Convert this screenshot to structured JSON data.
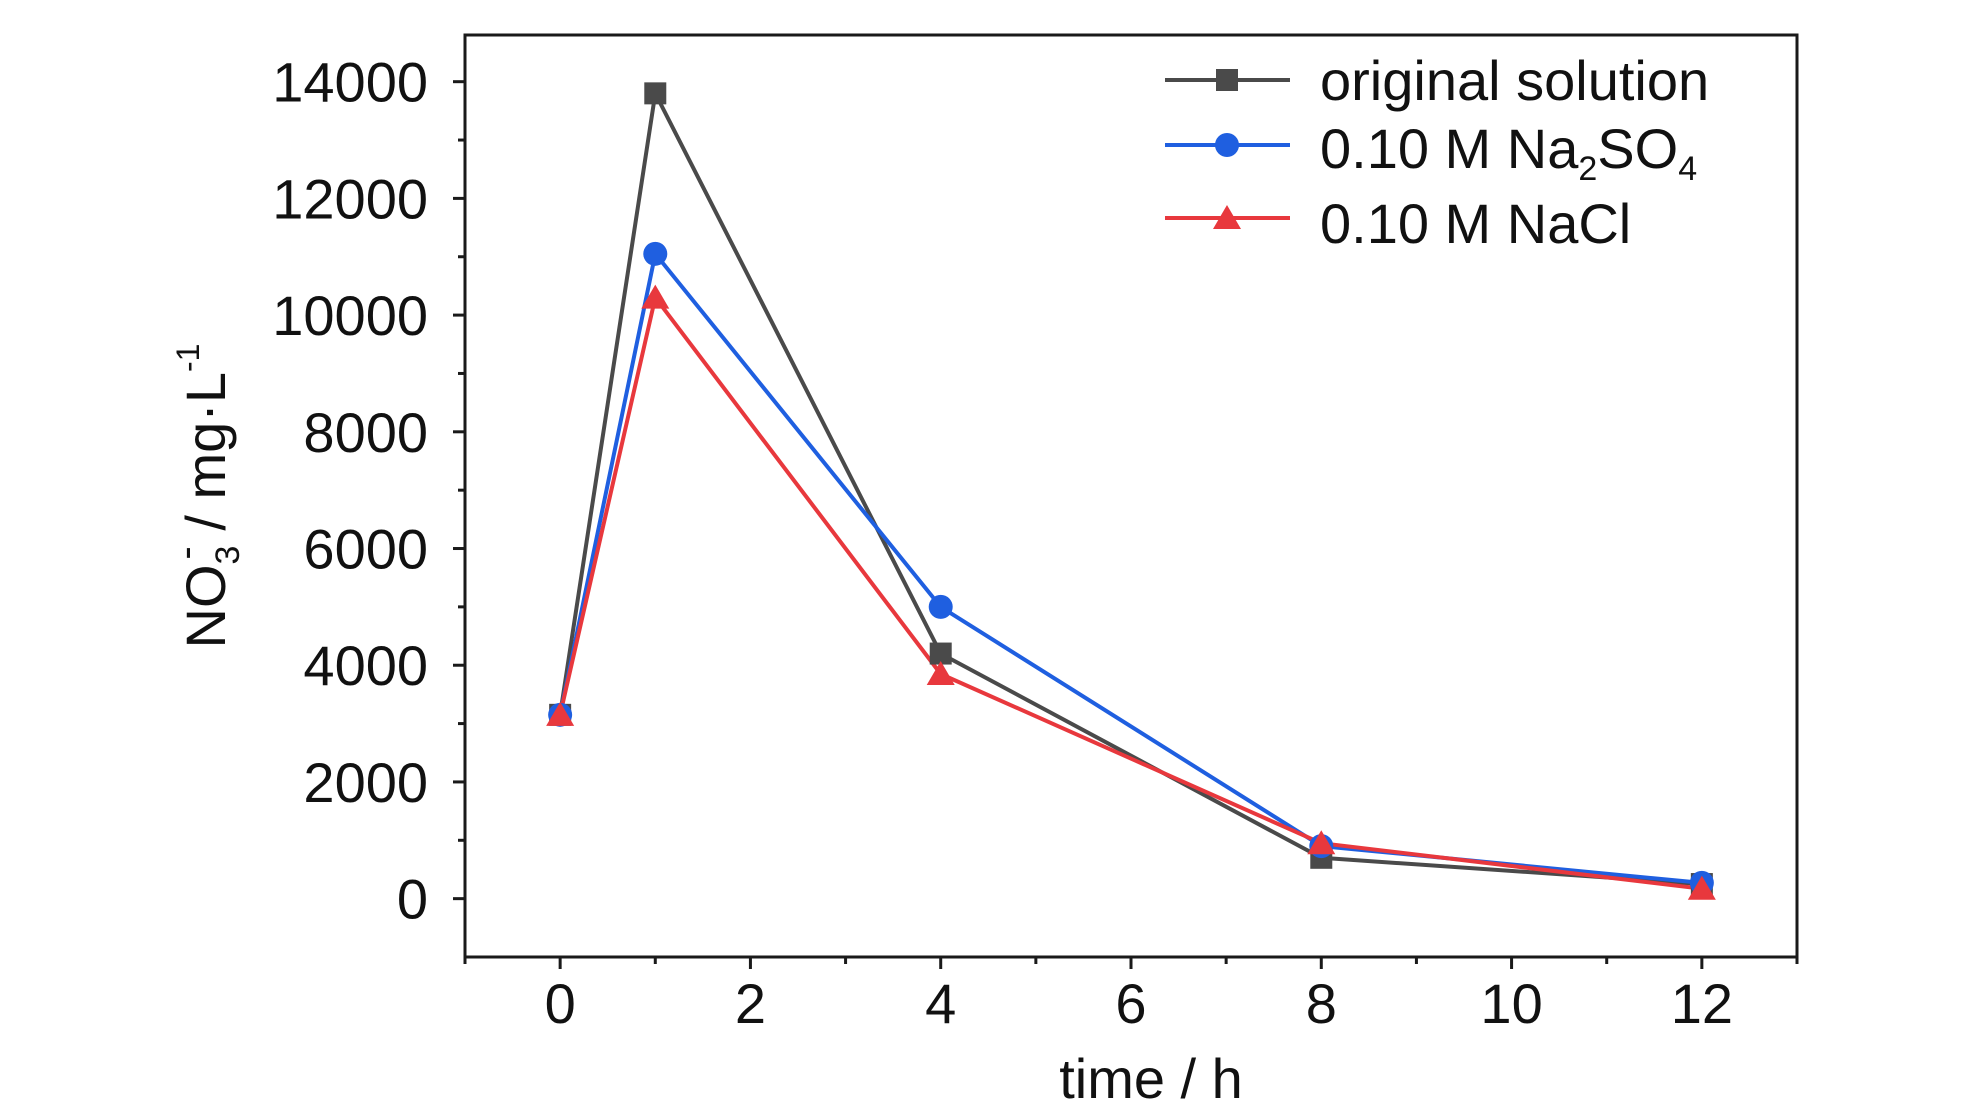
{
  "chart_data": {
    "type": "line",
    "xlabel": "time / h",
    "ylabel": {
      "base": "NO",
      "sub": "3",
      "charge": "-",
      "rest": " / mg·L",
      "exp": "-1"
    },
    "xlim": [
      -1,
      13
    ],
    "ylim": [
      -1000,
      14800
    ],
    "xticks": [
      0,
      2,
      4,
      6,
      8,
      10,
      12
    ],
    "yticks": [
      0,
      2000,
      4000,
      6000,
      8000,
      10000,
      12000,
      14000
    ],
    "grid": false,
    "legend_position": "top-right",
    "series": [
      {
        "name": "original solution",
        "color": "#4a4a4a",
        "marker": "square",
        "x": [
          0,
          1,
          4,
          8,
          12
        ],
        "y": [
          3150,
          13800,
          4200,
          700,
          250
        ]
      },
      {
        "name": "0.10 M Na2SO4",
        "legend": {
          "t1": "0.10 M Na",
          "s1": "2",
          "t2": "SO",
          "s2": "4"
        },
        "color": "#1f5fe0",
        "marker": "circle",
        "x": [
          0,
          1,
          4,
          8,
          12
        ],
        "y": [
          3150,
          11050,
          5000,
          900,
          270
        ]
      },
      {
        "name": "0.10 M NaCl",
        "color": "#e8383d",
        "marker": "triangle",
        "x": [
          0,
          1,
          4,
          8,
          12
        ],
        "y": [
          3150,
          10300,
          3850,
          950,
          170
        ]
      }
    ]
  }
}
